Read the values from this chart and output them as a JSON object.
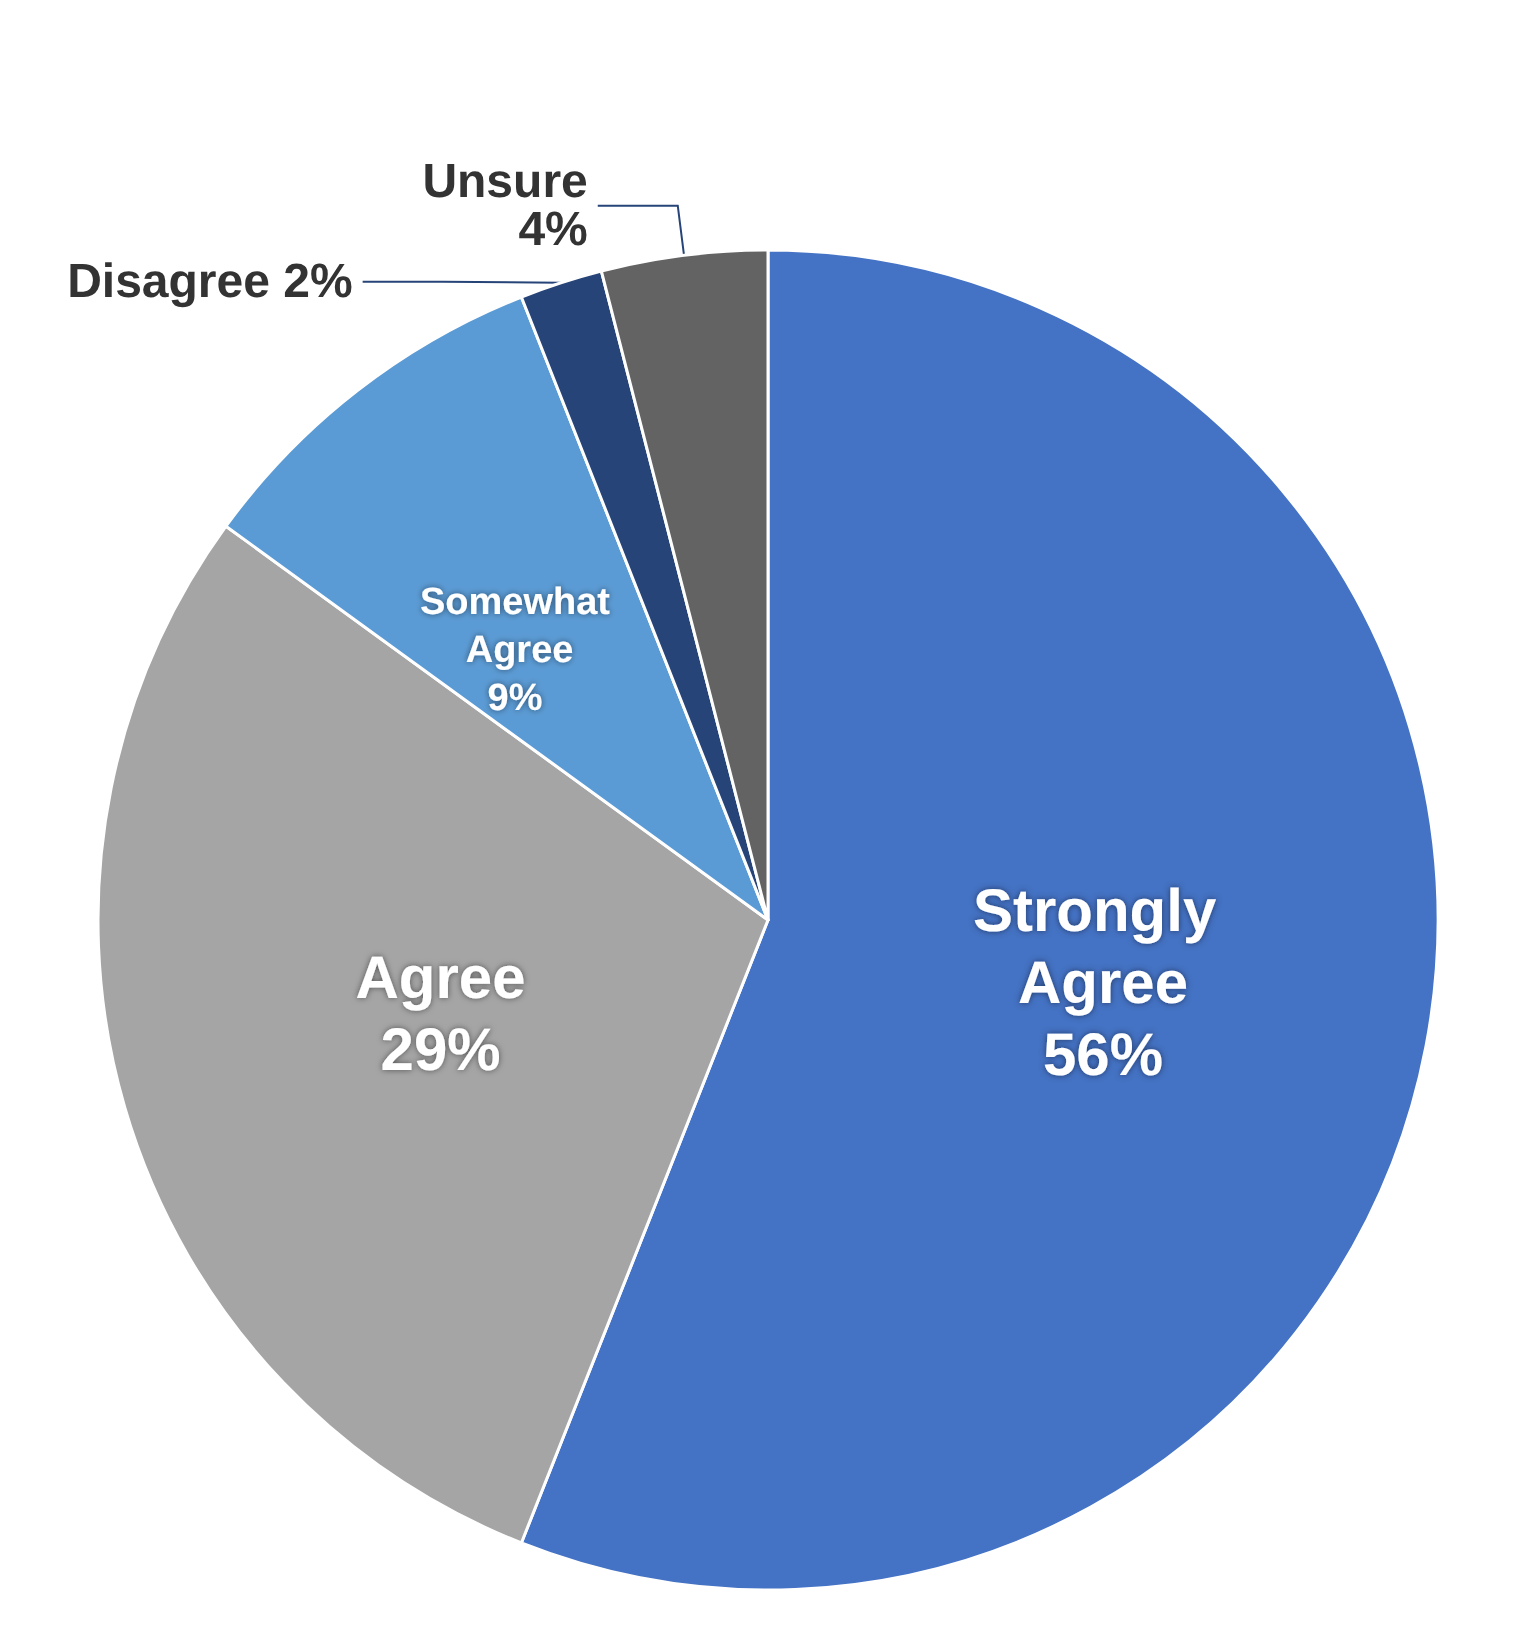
{
  "chart_data": {
    "type": "pie",
    "categories": [
      "Strongly Agree",
      "Agree",
      "Somewhat Agree",
      "Disagree",
      "Unsure"
    ],
    "values": [
      56,
      29,
      9,
      2,
      4
    ],
    "colors": [
      "#4472c4",
      "#a5a5a5",
      "#5b9bd5",
      "#264478",
      "#636363"
    ],
    "value_labels": [
      "56%",
      "29%",
      "9%",
      "2%",
      "4%"
    ]
  }
}
